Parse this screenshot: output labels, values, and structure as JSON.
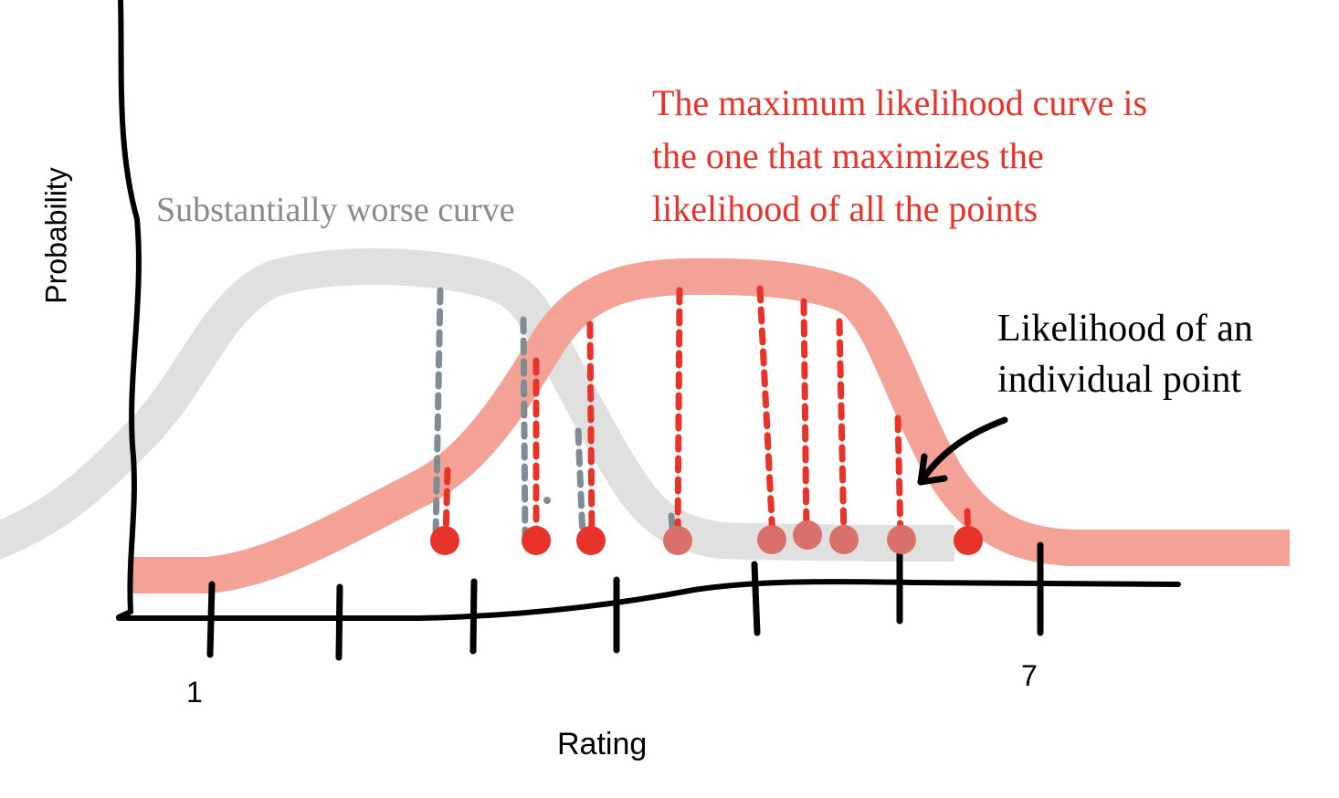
{
  "axes": {
    "y_label": "Probability",
    "x_label": "Rating",
    "x_tick_first": "1",
    "x_tick_last": "7"
  },
  "annotations": {
    "worse_curve": "Substantially worse curve",
    "mle_line1": "The maximum likelihood curve is",
    "mle_line2": "the one that maximizes the",
    "mle_line3": "likelihood of all the points",
    "individual_line1": "Likelihood of an",
    "individual_line2": "individual point"
  },
  "colors": {
    "mle_curve": "#f4a196",
    "worse_curve": "#e0e0e0",
    "point": "#e8332a",
    "grey_dash": "#7f8c93",
    "red_dash": "#e8332a",
    "mle_text": "#e8332a",
    "worse_text": "#8a8a8a",
    "axis": "#000000"
  },
  "icons": {
    "arrow": "curved-arrow-icon"
  }
}
